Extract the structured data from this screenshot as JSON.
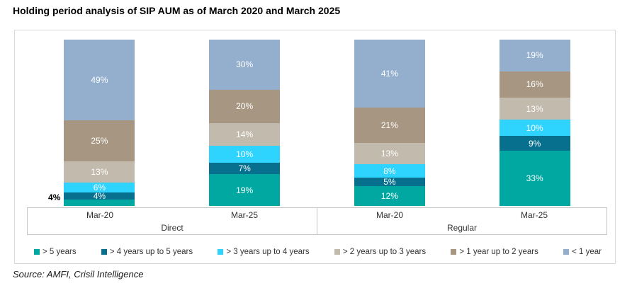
{
  "title": "Holding period analysis of SIP AUM as of March 2020 and March 2025",
  "source": "Source: AMFI, Crisil Intelligence",
  "chart_data": {
    "type": "bar",
    "subtype": "100pct-stacked-column",
    "unit": "%",
    "value_label_format": "{v}%",
    "legend_position": "bottom",
    "grid": false,
    "groups": [
      {
        "label": "Direct",
        "bars": [
          {
            "label": "Mar-20"
          },
          {
            "label": "Mar-25"
          }
        ]
      },
      {
        "label": "Regular",
        "bars": [
          {
            "label": "Mar-20"
          },
          {
            "label": "Mar-25"
          }
        ]
      }
    ],
    "bar_order_note": "values arrays are [Direct Mar-20, Direct Mar-25, Regular Mar-20, Regular Mar-25]; series listed bottom-to-top of stack",
    "series": [
      {
        "name": "> 5 years",
        "color": "#00A8A1",
        "values": [
          4,
          19,
          12,
          33
        ]
      },
      {
        "name": "> 4 years up to 5 years",
        "color": "#06708E",
        "values": [
          4,
          7,
          5,
          9
        ]
      },
      {
        "name": "> 3 years up to 4 years",
        "color": "#2ED3FE",
        "values": [
          6,
          10,
          8,
          10
        ]
      },
      {
        "name": "> 2 years up to 3 years",
        "color": "#C3BAAE",
        "values": [
          13,
          14,
          13,
          13
        ]
      },
      {
        "name": "> 1 year up to 2 years",
        "color": "#A79682",
        "values": [
          25,
          20,
          21,
          16
        ]
      },
      {
        "name": "< 1 year",
        "color": "#94AFCE",
        "values": [
          49,
          30,
          41,
          19
        ]
      }
    ],
    "callouts": [
      {
        "bar_index": 0,
        "series_index": 0,
        "text": "4%",
        "position": "outside-left",
        "anchor_series_index": 1
      }
    ]
  }
}
